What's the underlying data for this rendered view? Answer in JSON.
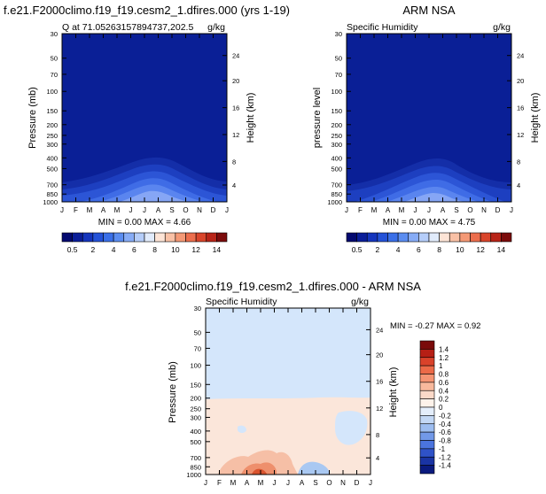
{
  "chart_data": [
    {
      "type": "heatmap",
      "title": "f.e21.F2000climo.f19_f19.cesm2_1.dfires.000 (yrs 1-19)",
      "subtitle_left": "Q at 71.05263157894737,202.5",
      "units": "g/kg",
      "ylabel": "Pressure (mb)",
      "ylabel_right": "Height (km)",
      "x_ticks": [
        "J",
        "F",
        "M",
        "A",
        "M",
        "J",
        "J",
        "A",
        "S",
        "O",
        "N",
        "D",
        "J"
      ],
      "y_ticks": [
        "30",
        "50",
        "70",
        "100",
        "150",
        "200",
        "250",
        "300",
        "400",
        "500",
        "700",
        "850",
        "1000"
      ],
      "y_right_ticks": [
        "24",
        "20",
        "16",
        "12",
        "8",
        "4"
      ],
      "minmax": "MIN =  0.00 MAX =  4.66",
      "colorbar_labels": [
        "0.5",
        "2",
        "4",
        "6",
        "8",
        "10",
        "12",
        "14"
      ]
    },
    {
      "type": "heatmap",
      "title": "ARM NSA",
      "subtitle_left": "Specific Humidity",
      "units": "g/kg",
      "ylabel": "pressure level",
      "ylabel_right": "Height (km)",
      "x_ticks": [
        "J",
        "F",
        "M",
        "A",
        "M",
        "J",
        "J",
        "A",
        "S",
        "O",
        "N",
        "D",
        "J"
      ],
      "y_ticks": [
        "30",
        "50",
        "70",
        "100",
        "150",
        "200",
        "250",
        "300",
        "400",
        "500",
        "700",
        "850",
        "1000"
      ],
      "y_right_ticks": [
        "24",
        "20",
        "16",
        "12",
        "8",
        "4"
      ],
      "minmax": "MIN =  0.00 MAX =  4.75",
      "colorbar_labels": [
        "0.5",
        "2",
        "4",
        "6",
        "8",
        "10",
        "12",
        "14"
      ]
    },
    {
      "type": "heatmap",
      "title": "f.e21.F2000climo.f19_f19.cesm2_1.dfires.000 - ARM NSA",
      "subtitle_left": "Specific Humidity",
      "units": "g/kg",
      "ylabel": "Pressure (mb)",
      "ylabel_right": "Height (km)",
      "x_ticks": [
        "J",
        "F",
        "M",
        "A",
        "M",
        "J",
        "J",
        "A",
        "S",
        "O",
        "N",
        "D",
        "J"
      ],
      "y_ticks": [
        "30",
        "50",
        "70",
        "100",
        "150",
        "200",
        "250",
        "300",
        "400",
        "500",
        "700",
        "850",
        "1000"
      ],
      "y_right_ticks": [
        "24",
        "20",
        "16",
        "12",
        "8",
        "4"
      ],
      "minmax": "MIN = -0.27 MAX =   0.92",
      "colorbar_labels": [
        "1.4",
        "1.2",
        "1",
        "0.8",
        "0.6",
        "0.4",
        "0.2",
        "0",
        "-0.2",
        "-0.4",
        "-0.6",
        "-0.8",
        "-1",
        "-1.2",
        "-1.4"
      ]
    }
  ]
}
